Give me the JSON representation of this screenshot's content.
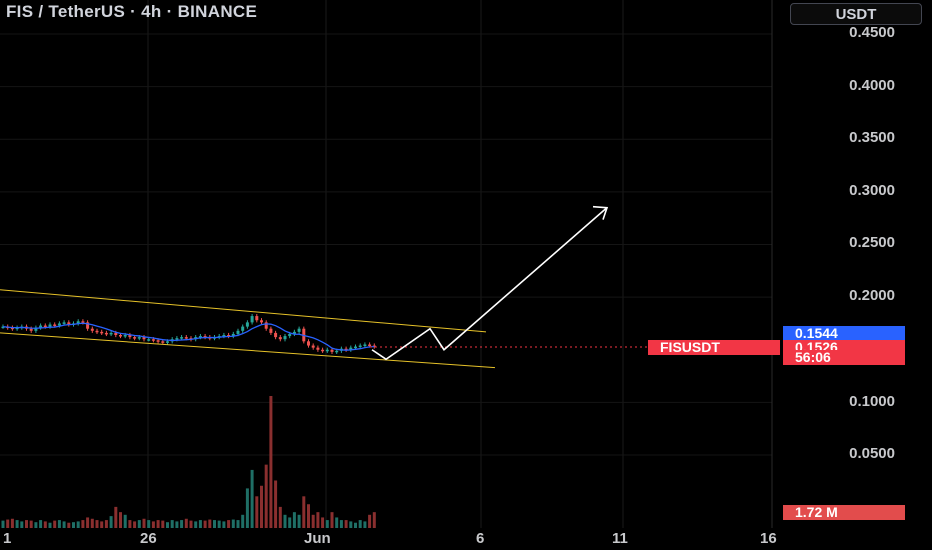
{
  "header": {
    "title": "FIS / TetherUS · 4h · BINANCE",
    "currency_button": "USDT"
  },
  "price_labels": {
    "symbol": "FISUSDT",
    "last_price": "0.1526",
    "countdown": "56:06",
    "crosshair_price": "0.1544",
    "volume_value": "1.72 M"
  },
  "colors": {
    "background": "#000000",
    "up": "#26a69a",
    "down": "#ef5350",
    "ma_line": "#2962ff",
    "channel": "#e6c229",
    "projection": "#ffffff",
    "label_blue": "#2962ff",
    "label_red": "#f23645"
  },
  "chart_data": {
    "type": "candlestick",
    "title": "FIS / TetherUS · 4h · BINANCE",
    "y_axis": {
      "ticks": [
        "0.4500",
        "0.4000",
        "0.3500",
        "0.3000",
        "0.2500",
        "0.2000",
        "0.1000",
        "0.0500"
      ],
      "range": [
        0.0,
        0.46
      ]
    },
    "x_axis": {
      "ticks": [
        "1",
        "26",
        "Jun",
        "6",
        "11",
        "16"
      ]
    },
    "close_series": [
      0.172,
      0.171,
      0.17,
      0.171,
      0.172,
      0.17,
      0.168,
      0.171,
      0.173,
      0.172,
      0.174,
      0.173,
      0.175,
      0.176,
      0.174,
      0.175,
      0.177,
      0.176,
      0.17,
      0.168,
      0.167,
      0.166,
      0.165,
      0.166,
      0.164,
      0.163,
      0.164,
      0.162,
      0.161,
      0.162,
      0.16,
      0.16,
      0.159,
      0.158,
      0.157,
      0.158,
      0.16,
      0.161,
      0.162,
      0.161,
      0.16,
      0.162,
      0.163,
      0.162,
      0.161,
      0.162,
      0.163,
      0.164,
      0.163,
      0.165,
      0.168,
      0.172,
      0.176,
      0.182,
      0.178,
      0.176,
      0.17,
      0.166,
      0.162,
      0.16,
      0.163,
      0.165,
      0.167,
      0.17,
      0.158,
      0.154,
      0.152,
      0.15,
      0.149,
      0.15,
      0.148,
      0.149,
      0.151,
      0.15,
      0.152,
      0.153,
      0.154,
      0.155,
      0.154,
      0.153
    ],
    "volume_series": [
      0.28,
      0.32,
      0.35,
      0.3,
      0.25,
      0.3,
      0.28,
      0.22,
      0.3,
      0.25,
      0.2,
      0.28,
      0.3,
      0.25,
      0.2,
      0.22,
      0.25,
      0.3,
      0.4,
      0.35,
      0.3,
      0.25,
      0.3,
      0.45,
      0.8,
      0.6,
      0.5,
      0.3,
      0.25,
      0.3,
      0.35,
      0.3,
      0.25,
      0.3,
      0.28,
      0.22,
      0.3,
      0.25,
      0.3,
      0.35,
      0.28,
      0.25,
      0.3,
      0.28,
      0.32,
      0.3,
      0.28,
      0.25,
      0.3,
      0.32,
      0.3,
      0.5,
      1.5,
      2.2,
      1.2,
      1.6,
      2.4,
      5.0,
      1.8,
      0.8,
      0.5,
      0.4,
      0.6,
      0.5,
      1.2,
      0.9,
      0.5,
      0.6,
      0.4,
      0.3,
      0.6,
      0.4,
      0.3,
      0.3,
      0.25,
      0.2,
      0.3,
      0.25,
      0.5,
      0.6
    ],
    "projection_path": [
      0.15,
      0.141,
      0.17,
      0.15,
      0.285
    ],
    "channel_upper": [
      0.207,
      0.167
    ],
    "channel_lower": [
      0.166,
      0.133
    ]
  }
}
